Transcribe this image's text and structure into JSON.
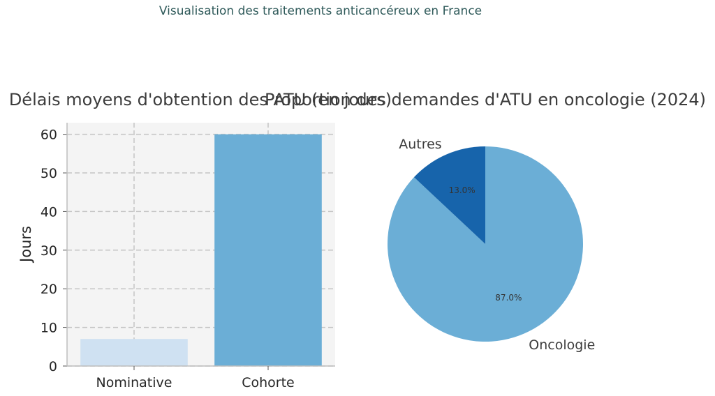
{
  "suptitle": "Visualisation des traitements anticancéreux en France",
  "chart_data": [
    {
      "type": "bar",
      "title": "Délais moyens d'obtention des ATU (en jours)",
      "xlabel": "",
      "ylabel": "Jours",
      "categories": [
        "Nominative",
        "Cohorte"
      ],
      "values": [
        7,
        60
      ],
      "colors": [
        "#cfe1f2",
        "#6baed6"
      ],
      "ylim": [
        0,
        63
      ],
      "yticks": [
        0,
        10,
        20,
        30,
        40,
        50,
        60
      ],
      "grid": true
    },
    {
      "type": "pie",
      "title": "Proportion des demandes d'ATU en oncologie (2024)",
      "labels": [
        "Oncologie",
        "Autres"
      ],
      "values": [
        87.0,
        13.0
      ],
      "pct_labels": [
        "87.0%",
        "13.0%"
      ],
      "colors": [
        "#6baed6",
        "#1764ab"
      ]
    }
  ]
}
